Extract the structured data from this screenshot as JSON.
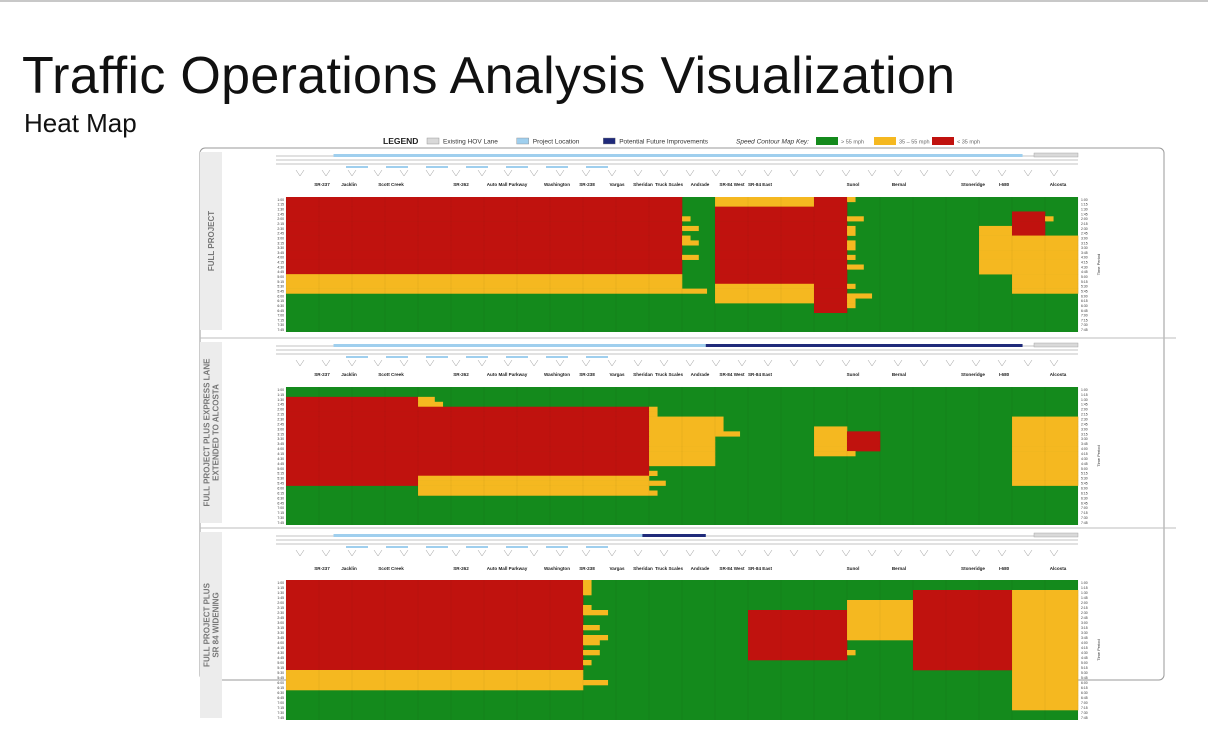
{
  "slide": {
    "title": "Traffic Operations Analysis Visualization",
    "subtitle": "Heat Map"
  },
  "legend": {
    "heading": "LEGEND",
    "items": [
      {
        "label": "Existing HOV Lane",
        "swatch": "#d9d9d9"
      },
      {
        "label": "Project Location",
        "swatch": "#9fcfee"
      },
      {
        "label": "Potential Future Improvements",
        "swatch": "#1f2a7a"
      }
    ],
    "speed_key_label": "Speed Contour Map Key:",
    "speed_bins": [
      {
        "label": "> 55 mph",
        "color": "#148a1c"
      },
      {
        "label": "35 – 55 mph",
        "color": "#f5b820"
      },
      {
        "label": "< 35 mph",
        "color": "#c0120e"
      }
    ]
  },
  "colors": {
    "green": "#148a1c",
    "yellow": "#f5b820",
    "red": "#c0120e",
    "hov": "#d9d9d9",
    "project": "#9fcfee",
    "future": "#1f2a7a"
  },
  "chart_data": {
    "type": "heatmap",
    "value_scale": {
      "0": "> 55 mph",
      "1": "35 – 55 mph",
      "2": "< 35 mph"
    },
    "y_axis_side_label": "Time Period",
    "locations": [
      "SR-237",
      "Jacklin",
      "Scott Creek",
      "SR-262",
      "Auto Mall Parkway",
      "Washington",
      "SR-238",
      "Vargas",
      "Sheridan",
      "Truck Scales",
      "Andrade",
      "SR-84 West",
      "SR-84 East",
      "Sunol",
      "Bernal",
      "Stoneridge",
      "I-680",
      "Alcosta"
    ],
    "time_labels": [
      "1:00",
      "1:15",
      "1:30",
      "1:45",
      "2:00",
      "2:15",
      "2:30",
      "2:45",
      "3:00",
      "3:15",
      "3:30",
      "3:45",
      "4:00",
      "4:15",
      "4:30",
      "4:45",
      "5:00",
      "5:15",
      "5:30",
      "5:45",
      "6:00",
      "6:15",
      "6:30",
      "6:45",
      "7:00",
      "7:15",
      "7:30",
      "7:45"
    ],
    "panels": [
      {
        "scenario": "FULL PROJECT",
        "columns": 24,
        "rows": 28,
        "segments_per_location_note": "columns span SR-237 → Alcosta",
        "congestion": [
          {
            "cols": [
              0,
              12
            ],
            "rows": [
              0,
              16
            ],
            "value": 2
          },
          {
            "cols": [
              0,
              12
            ],
            "rows": [
              16,
              20
            ],
            "value": 1
          },
          {
            "cols": [
              13,
              16
            ],
            "rows": [
              0,
              2
            ],
            "value": 1
          },
          {
            "cols": [
              13,
              16
            ],
            "rows": [
              2,
              18
            ],
            "value": 2
          },
          {
            "cols": [
              13,
              16
            ],
            "rows": [
              18,
              22
            ],
            "value": 1
          },
          {
            "cols": [
              16,
              17
            ],
            "rows": [
              0,
              24
            ],
            "value": 2
          },
          {
            "cols": [
              21,
              22
            ],
            "rows": [
              6,
              16
            ],
            "value": 1
          },
          {
            "cols": [
              22,
              23
            ],
            "rows": [
              3,
              8
            ],
            "value": 2
          },
          {
            "cols": [
              22,
              24
            ],
            "rows": [
              8,
              20
            ],
            "value": 1
          }
        ],
        "overlays": [
          {
            "type": "project",
            "start": 0.06,
            "end": 0.93
          }
        ]
      },
      {
        "scenario": "FULL PROJECT PLUS EXPRESS LANE EXTENDED TO ALCOSTA",
        "columns": 24,
        "rows": 28,
        "congestion": [
          {
            "cols": [
              0,
              4
            ],
            "rows": [
              2,
              20
            ],
            "value": 2
          },
          {
            "cols": [
              4,
              11
            ],
            "rows": [
              4,
              18
            ],
            "value": 2
          },
          {
            "cols": [
              4,
              11
            ],
            "rows": [
              18,
              22
            ],
            "value": 1
          },
          {
            "cols": [
              11,
              13
            ],
            "rows": [
              6,
              16
            ],
            "value": 1
          },
          {
            "cols": [
              16,
              17
            ],
            "rows": [
              8,
              14
            ],
            "value": 1
          },
          {
            "cols": [
              17,
              18
            ],
            "rows": [
              9,
              13
            ],
            "value": 2
          },
          {
            "cols": [
              22,
              24
            ],
            "rows": [
              6,
              20
            ],
            "value": 1
          }
        ],
        "overlays": [
          {
            "type": "project",
            "start": 0.06,
            "end": 0.53
          },
          {
            "type": "future",
            "start": 0.53,
            "end": 0.93
          }
        ]
      },
      {
        "scenario": "FULL PROJECT PLUS SR 84 WIDENING",
        "columns": 24,
        "rows": 28,
        "congestion": [
          {
            "cols": [
              0,
              9
            ],
            "rows": [
              0,
              18
            ],
            "value": 2
          },
          {
            "cols": [
              0,
              9
            ],
            "rows": [
              18,
              22
            ],
            "value": 1
          },
          {
            "cols": [
              14,
              17
            ],
            "rows": [
              6,
              16
            ],
            "value": 2
          },
          {
            "cols": [
              17,
              19
            ],
            "rows": [
              4,
              12
            ],
            "value": 1
          },
          {
            "cols": [
              19,
              22
            ],
            "rows": [
              2,
              18
            ],
            "value": 2
          },
          {
            "cols": [
              22,
              24
            ],
            "rows": [
              2,
              26
            ],
            "value": 1
          }
        ],
        "overlays": [
          {
            "type": "project",
            "start": 0.06,
            "end": 0.53
          },
          {
            "type": "future",
            "start": 0.45,
            "end": 0.53
          }
        ]
      }
    ]
  }
}
